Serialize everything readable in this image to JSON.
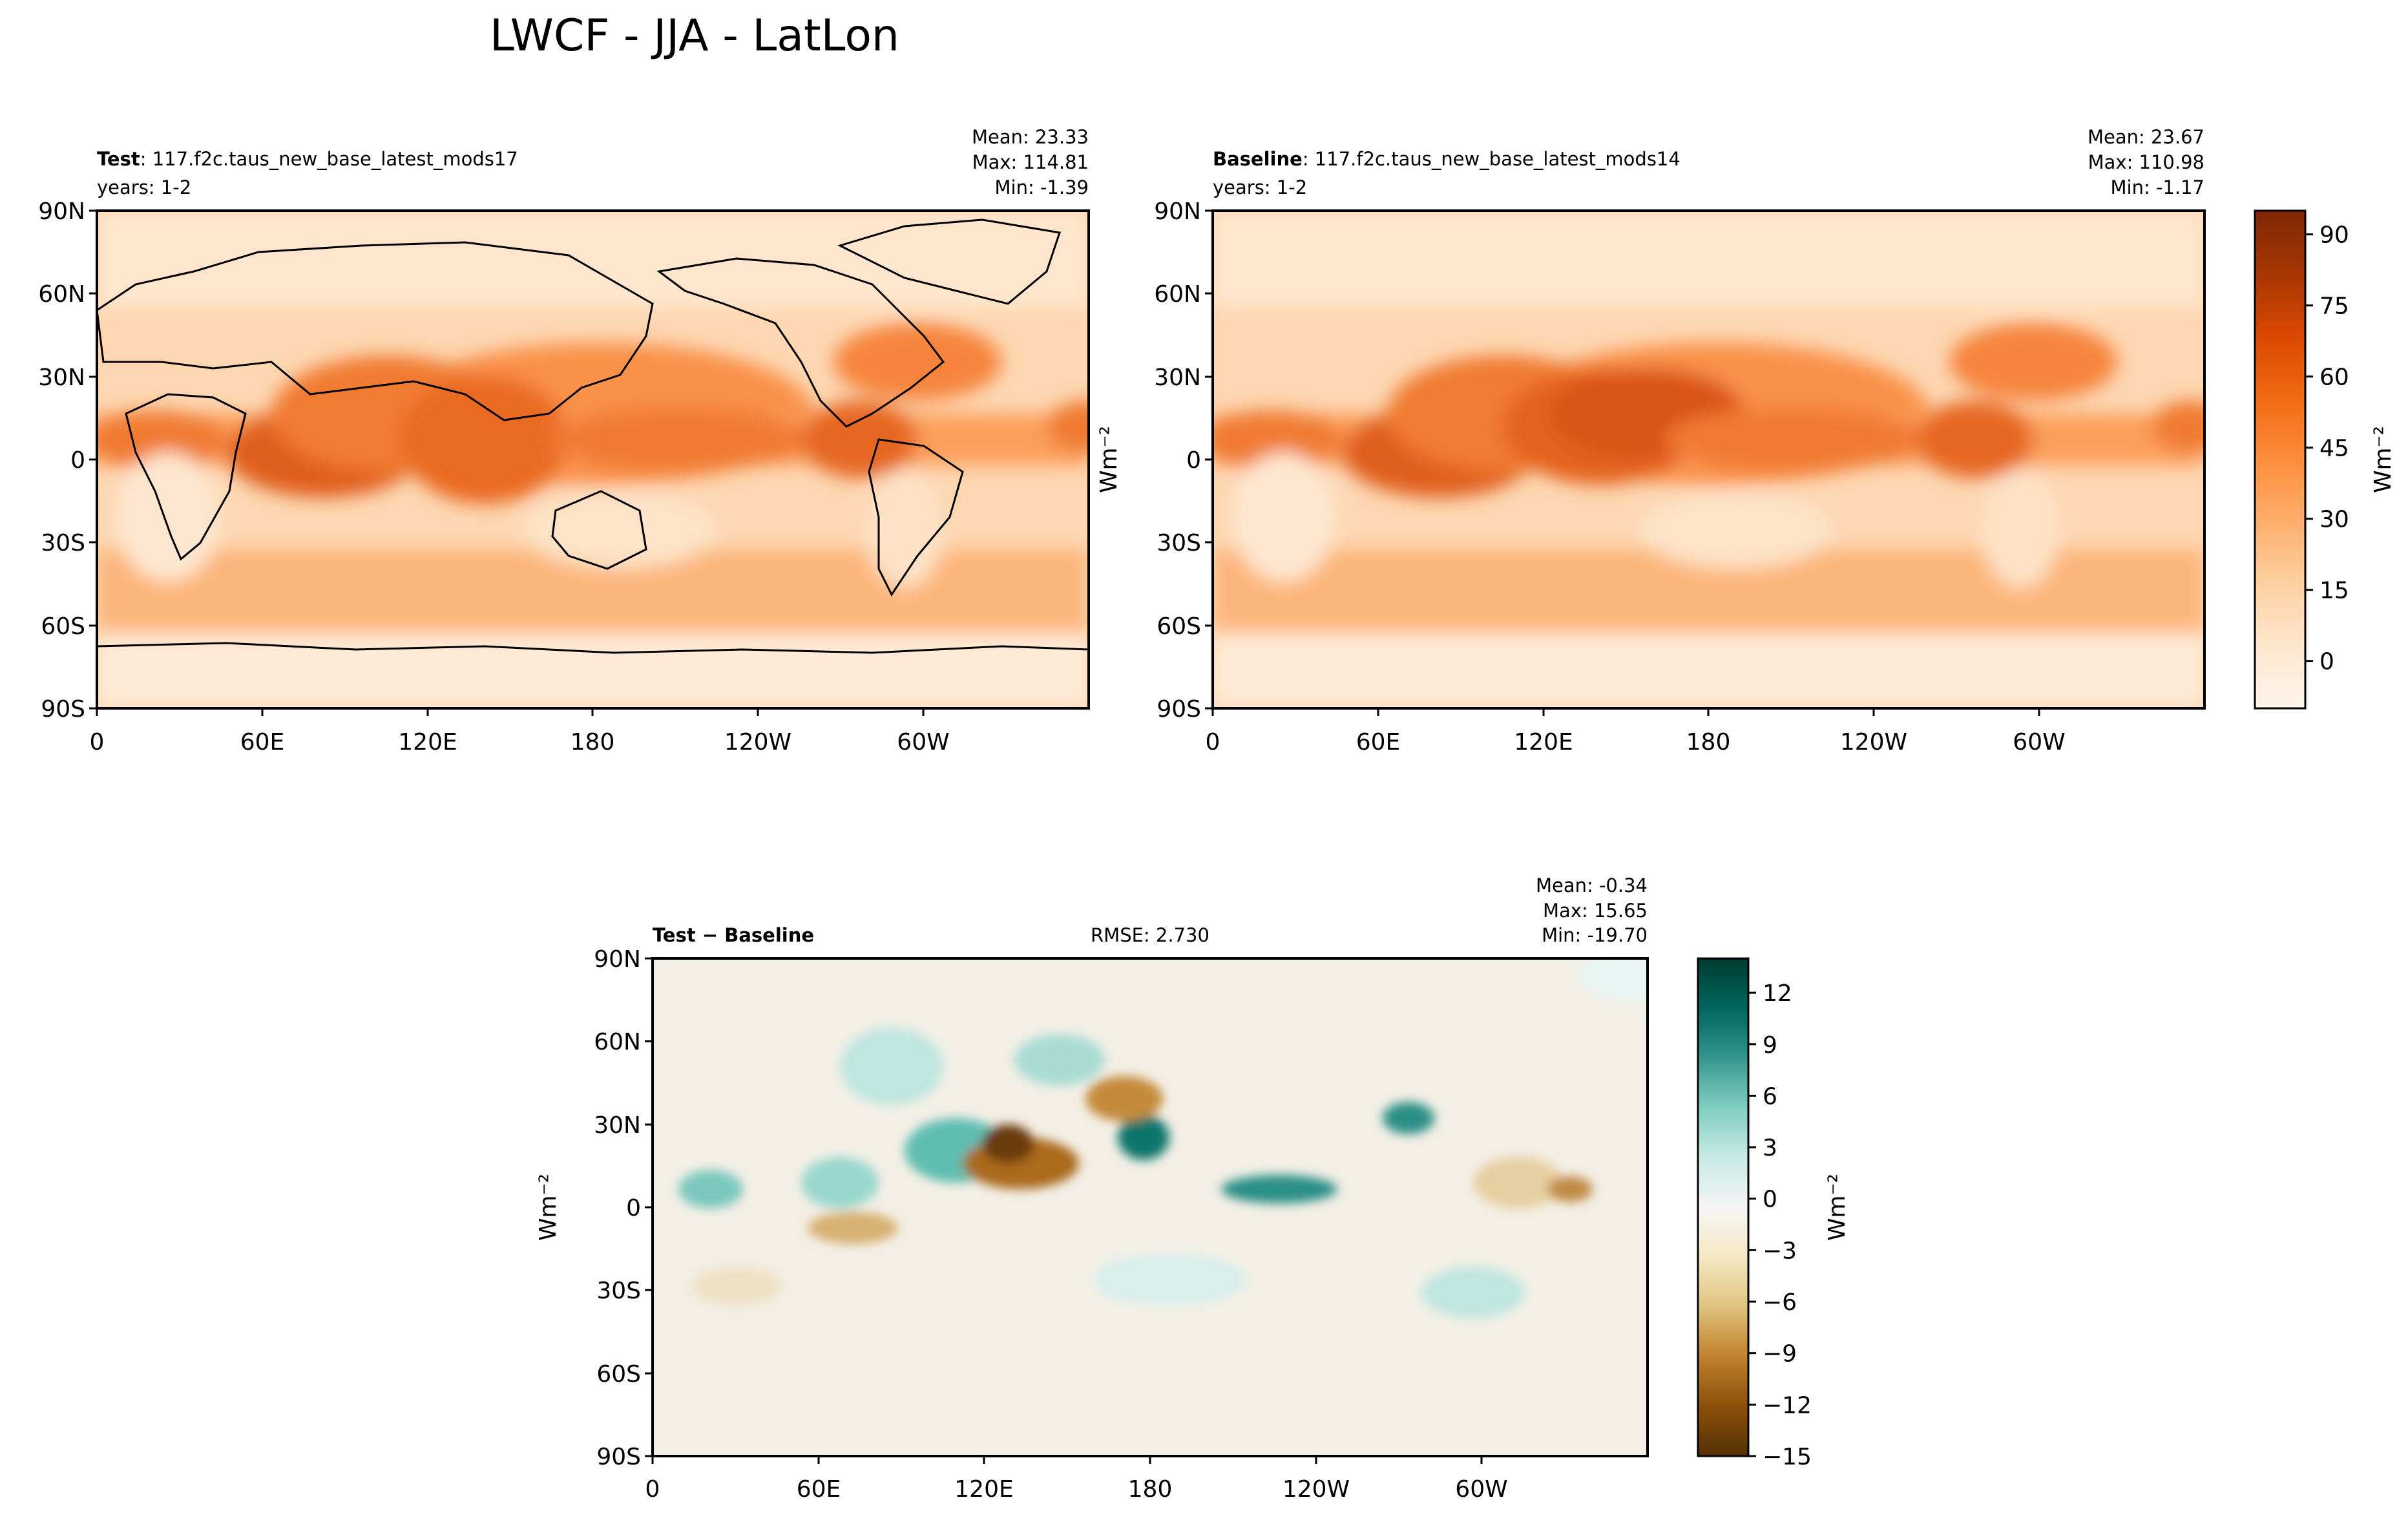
{
  "figure": {
    "title": "LWCF - JJA - LatLon"
  },
  "colors": {
    "oranges": [
      "#fff5eb",
      "#fee6ce",
      "#fdd0a2",
      "#fdae6b",
      "#fd8d3c",
      "#f16913",
      "#d94801",
      "#a63603",
      "#7f2704"
    ],
    "brbg": [
      "#543005",
      "#8c510a",
      "#bf812d",
      "#dfc27d",
      "#f6e8c3",
      "#f5f5f5",
      "#c7eae5",
      "#80cdc1",
      "#35978f",
      "#01665e",
      "#003c30"
    ]
  },
  "chart_data": [
    {
      "type": "heatmap",
      "panel": "test",
      "label_bold": "Test",
      "label_rest": ": 117.f2c.taus_new_base_latest_mods17",
      "years": "years: 1-2",
      "stats": [
        "Mean: 23.33",
        "Max: 114.81",
        "Min: -1.39"
      ],
      "x_ticks": [
        "0",
        "60E",
        "120E",
        "180",
        "120W",
        "60W"
      ],
      "y_ticks": [
        "90N",
        "60N",
        "30N",
        "0",
        "30S",
        "60S",
        "90S"
      ],
      "xlim": [
        0,
        360
      ],
      "ylim": [
        -90,
        90
      ],
      "ylabel": "",
      "colormap": "oranges",
      "data_range": [
        -10,
        95
      ]
    },
    {
      "type": "heatmap",
      "panel": "baseline",
      "label_bold": "Baseline",
      "label_rest": ": 117.f2c.taus_new_base_latest_mods14",
      "years": "years: 1-2",
      "stats": [
        "Mean: 23.67",
        "Max: 110.98",
        "Min: -1.17"
      ],
      "x_ticks": [
        "0",
        "60E",
        "120E",
        "180",
        "120W",
        "60W"
      ],
      "y_ticks": [
        "90N",
        "60N",
        "30N",
        "0",
        "30S",
        "60S",
        "90S"
      ],
      "xlim": [
        0,
        360
      ],
      "ylim": [
        -90,
        90
      ],
      "ylabel": "Wm⁻²",
      "colormap": "oranges",
      "colorbar": {
        "ticks": [
          "90",
          "75",
          "60",
          "45",
          "30",
          "15",
          "0"
        ],
        "values": [
          90,
          75,
          60,
          45,
          30,
          15,
          0
        ],
        "range": [
          -10,
          95
        ],
        "label": "Wm⁻²"
      }
    },
    {
      "type": "heatmap",
      "panel": "difference",
      "label_bold": "Test − Baseline",
      "rmse": "RMSE: 2.730",
      "stats": [
        "Mean: -0.34",
        "Max: 15.65",
        "Min: -19.70"
      ],
      "x_ticks": [
        "0",
        "60E",
        "120E",
        "180",
        "120W",
        "60W"
      ],
      "y_ticks": [
        "90N",
        "60N",
        "30N",
        "0",
        "30S",
        "60S",
        "90S"
      ],
      "xlim": [
        0,
        360
      ],
      "ylim": [
        -90,
        90
      ],
      "ylabel": "Wm⁻²",
      "colormap": "brbg",
      "colorbar": {
        "ticks": [
          "12",
          "9",
          "6",
          "3",
          "0",
          "−3",
          "−6",
          "−9",
          "−12",
          "−15"
        ],
        "values": [
          12,
          9,
          6,
          3,
          0,
          -3,
          -6,
          -9,
          -12,
          -15
        ],
        "range": [
          -15,
          14
        ],
        "label": "Wm⁻²"
      }
    }
  ]
}
